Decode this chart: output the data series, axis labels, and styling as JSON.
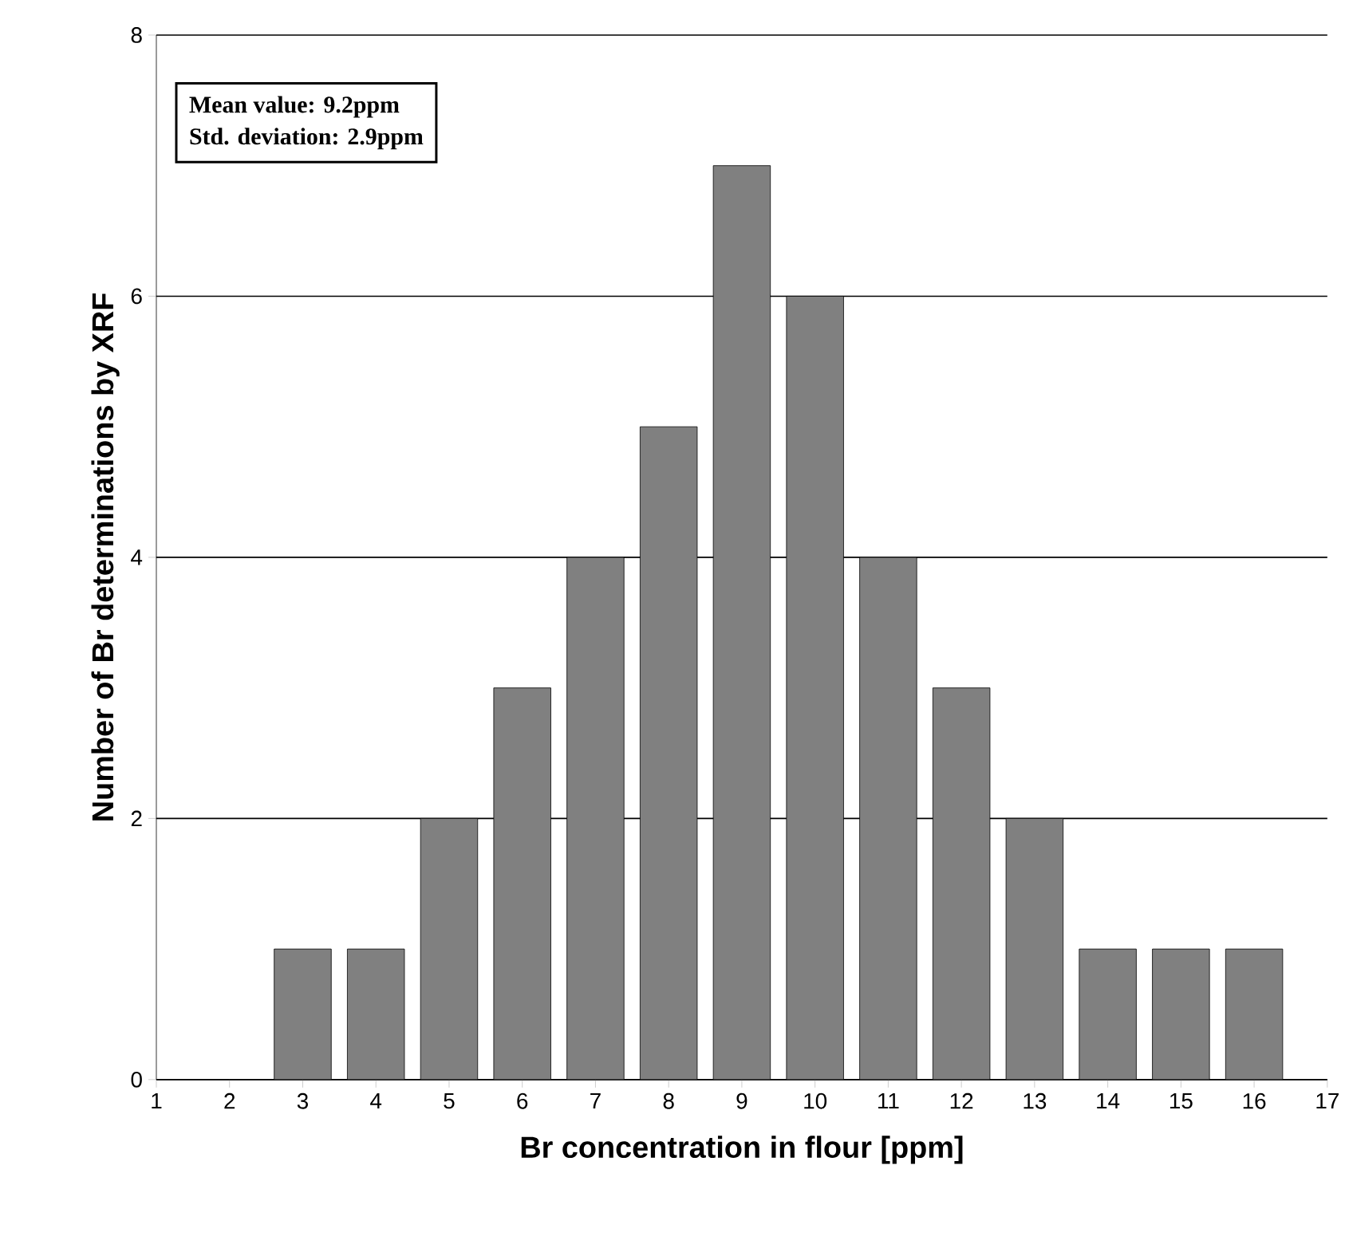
{
  "chart_data": {
    "type": "bar",
    "xlabel": "Br concentration in flour [ppm]",
    "ylabel": "Number of Br determinations by XRF",
    "x": [
      3,
      4,
      5,
      6,
      7,
      8,
      9,
      10,
      11,
      12,
      13,
      14,
      15,
      16
    ],
    "values": [
      1,
      1,
      2,
      3,
      4,
      5,
      7,
      6,
      4,
      3,
      2,
      1,
      1,
      1
    ],
    "color": "#808080",
    "xlim": [
      1,
      17
    ],
    "xticks": [
      1,
      2,
      3,
      4,
      5,
      6,
      7,
      8,
      9,
      10,
      11,
      12,
      13,
      14,
      15,
      16,
      17
    ],
    "ylim": [
      0,
      8
    ],
    "yticks": [
      0,
      2,
      4,
      6,
      8
    ],
    "grid": "y",
    "annotations": [
      "Mean value: 9.2ppm",
      "Std. deviation: 2.9ppm"
    ]
  }
}
